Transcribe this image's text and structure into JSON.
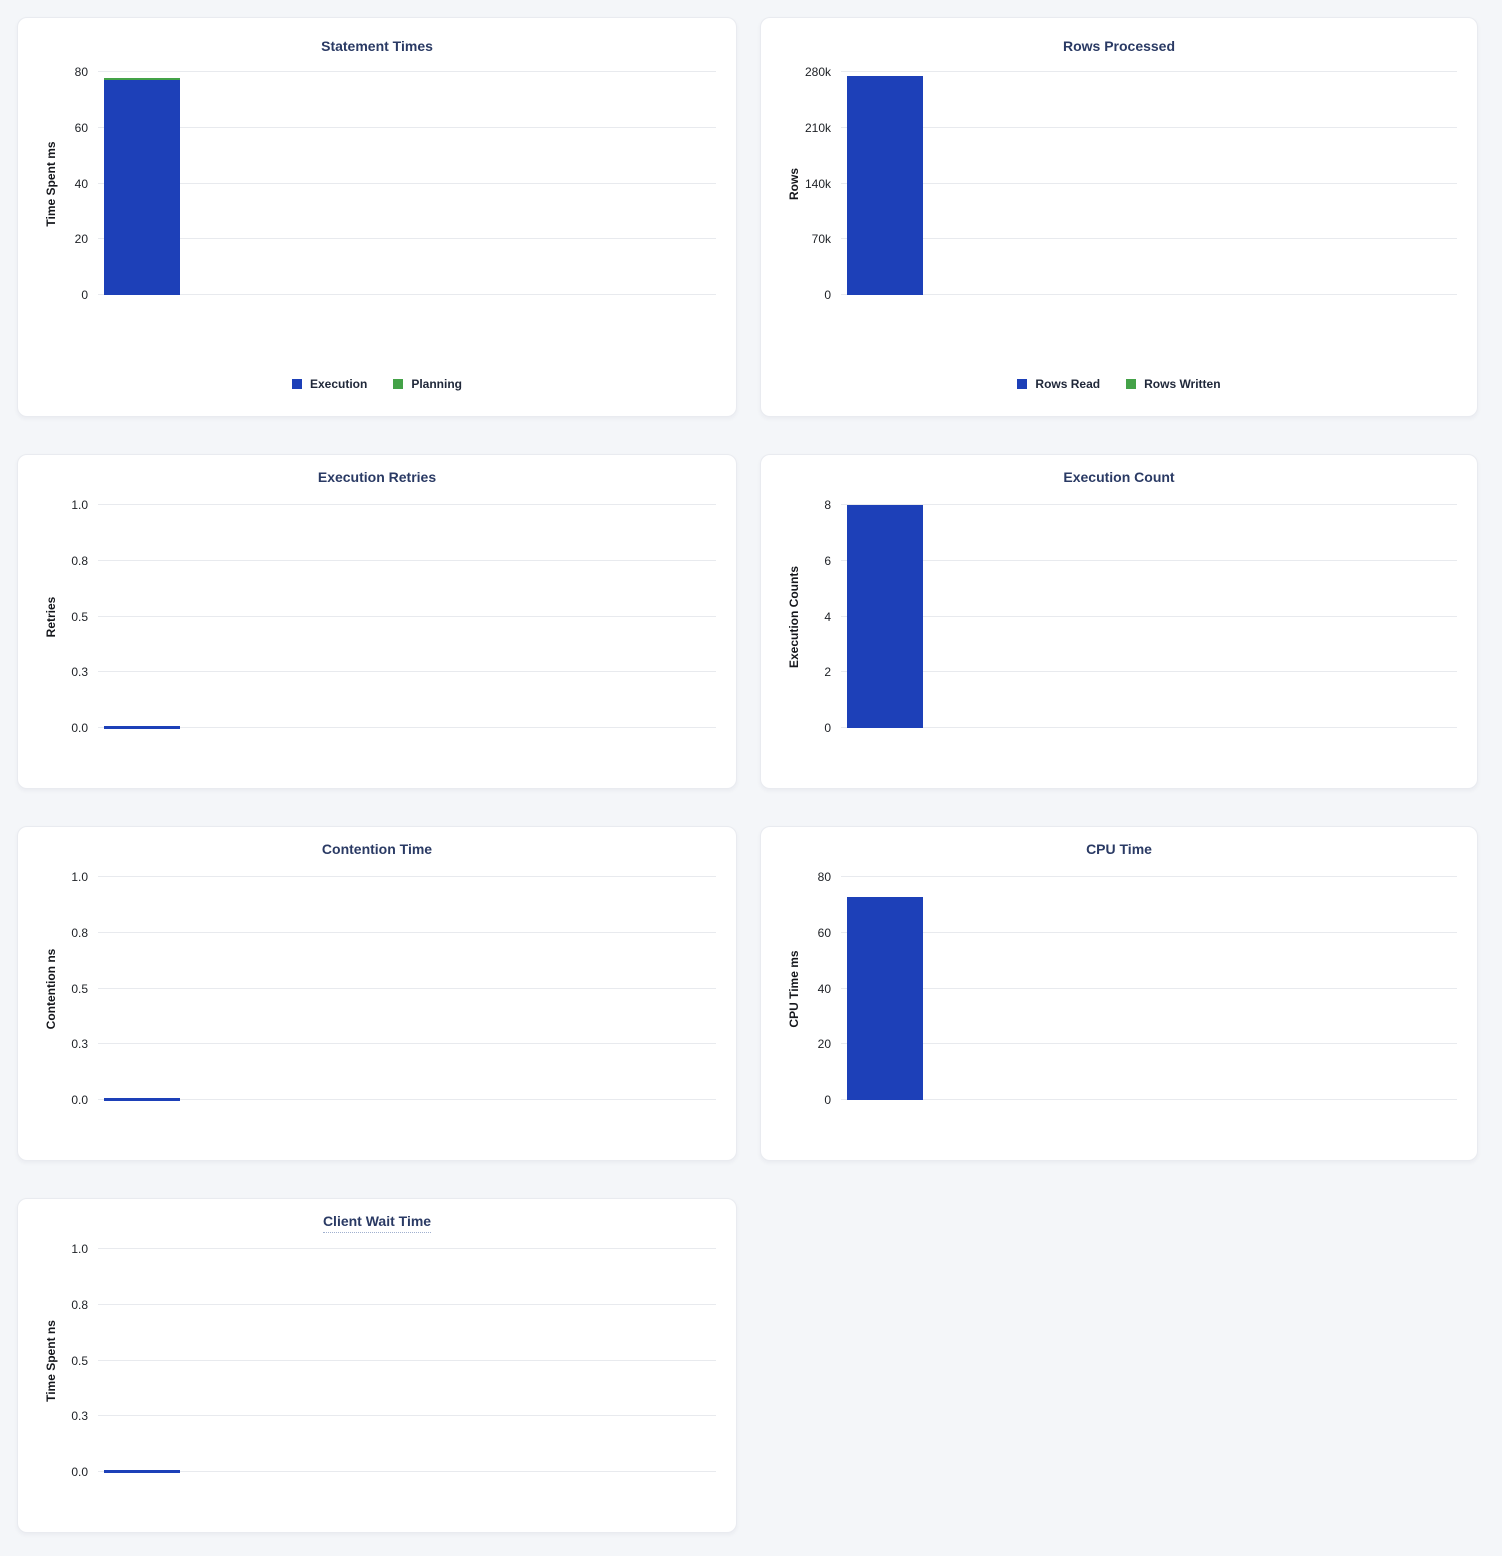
{
  "page": {
    "background_color": "#f4f6f9",
    "card_background": "#ffffff"
  },
  "chart_data": [
    {
      "type": "bar",
      "title": "Statement Times",
      "ylabel": "Time Spent ms",
      "ylim": [
        0,
        80
      ],
      "ytick_labels": [
        "0",
        "20",
        "40",
        "60",
        "80"
      ],
      "grid": true,
      "stacked": true,
      "legend": true,
      "legend_position": "bottom",
      "title_tooltip_underline": false,
      "series": [
        {
          "name": "Execution",
          "color": "#1d40b8",
          "values": [
            77
          ]
        },
        {
          "name": "Planning",
          "color": "#44a248",
          "values": [
            1
          ]
        }
      ]
    },
    {
      "type": "bar",
      "title": "Rows Processed",
      "ylabel": "Rows",
      "ylim": [
        0,
        280000
      ],
      "ytick_labels": [
        "0",
        "70k",
        "140k",
        "210k",
        "280k"
      ],
      "grid": true,
      "stacked": true,
      "legend": true,
      "legend_position": "bottom",
      "title_tooltip_underline": false,
      "series": [
        {
          "name": "Rows Read",
          "color": "#1d40b8",
          "values": [
            275000
          ]
        },
        {
          "name": "Rows Written",
          "color": "#44a248",
          "values": [
            0
          ]
        }
      ]
    },
    {
      "type": "bar",
      "title": "Execution Retries",
      "ylabel": "Retries",
      "ylim": [
        0,
        1
      ],
      "ytick_labels": [
        "0.0",
        "0.3",
        "0.5",
        "0.8",
        "1.0"
      ],
      "grid": true,
      "stacked": false,
      "legend": false,
      "title_tooltip_underline": false,
      "series": [
        {
          "color": "#1d40b8",
          "values": [
            0
          ]
        }
      ]
    },
    {
      "type": "bar",
      "title": "Execution Count",
      "ylabel": "Execution Counts",
      "ylim": [
        0,
        8
      ],
      "ytick_labels": [
        "0",
        "2",
        "4",
        "6",
        "8"
      ],
      "grid": true,
      "stacked": false,
      "legend": false,
      "title_tooltip_underline": false,
      "series": [
        {
          "color": "#1d40b8",
          "values": [
            8
          ]
        }
      ]
    },
    {
      "type": "bar",
      "title": "Contention Time",
      "ylabel": "Contention ns",
      "ylim": [
        0,
        1
      ],
      "ytick_labels": [
        "0.0",
        "0.3",
        "0.5",
        "0.8",
        "1.0"
      ],
      "grid": true,
      "stacked": false,
      "legend": false,
      "title_tooltip_underline": false,
      "series": [
        {
          "color": "#1d40b8",
          "values": [
            0
          ]
        }
      ]
    },
    {
      "type": "bar",
      "title": "CPU Time",
      "ylabel": "CPU Time ms",
      "ylim": [
        0,
        80
      ],
      "ytick_labels": [
        "0",
        "20",
        "40",
        "60",
        "80"
      ],
      "grid": true,
      "stacked": false,
      "legend": false,
      "title_tooltip_underline": false,
      "series": [
        {
          "color": "#1d40b8",
          "values": [
            73
          ]
        }
      ]
    },
    {
      "type": "bar",
      "title": "Client Wait Time",
      "ylabel": "Time Spent ns",
      "ylim": [
        0,
        1
      ],
      "ytick_labels": [
        "0.0",
        "0.3",
        "0.5",
        "0.8",
        "1.0"
      ],
      "grid": true,
      "stacked": false,
      "legend": false,
      "title_tooltip_underline": true,
      "series": [
        {
          "color": "#1d40b8",
          "values": [
            0
          ]
        }
      ]
    }
  ]
}
